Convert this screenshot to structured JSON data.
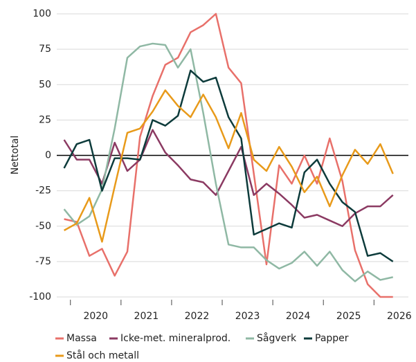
{
  "chart_data": {
    "type": "line",
    "y_label": "Nettotal",
    "x": [
      2019.875,
      2020.125,
      2020.375,
      2020.625,
      2020.875,
      2021.125,
      2021.375,
      2021.625,
      2021.875,
      2022.125,
      2022.375,
      2022.625,
      2022.875,
      2023.125,
      2023.375,
      2023.625,
      2023.875,
      2024.125,
      2024.375,
      2024.625,
      2024.875,
      2025.125,
      2025.375,
      2025.625,
      2025.875,
      2026.125,
      2026.375
    ],
    "series": [
      {
        "name": "Massa",
        "color": "#e8706a",
        "values": [
          -45,
          -47,
          -71,
          -66,
          -85,
          -68,
          13,
          42,
          64,
          69,
          87,
          92,
          100,
          62,
          51,
          -13,
          -77,
          -7,
          -20,
          0,
          -20,
          12,
          -18,
          -67,
          -91,
          -100,
          -100
        ]
      },
      {
        "name": "Icke-met. mineralprod.",
        "color": "#8b3a62",
        "values": [
          11,
          -3,
          -3,
          -20,
          9,
          -11,
          -3,
          18,
          2,
          -7,
          -17,
          -19,
          -28,
          -11,
          6,
          -28,
          -20,
          -27,
          -35,
          -44,
          -42,
          -46,
          -50,
          -41,
          -36,
          -36,
          -28
        ]
      },
      {
        "name": "Sågverk",
        "color": "#8fb8a4",
        "values": [
          -38,
          -49,
          -43,
          -24,
          19,
          69,
          77,
          79,
          78,
          62,
          75,
          30,
          -20,
          -63,
          -65,
          -65,
          -74,
          -80,
          -76,
          -68,
          -78,
          -68,
          -81,
          -89,
          -82,
          -88,
          -86
        ]
      },
      {
        "name": "Papper",
        "color": "#0d3b3b",
        "values": [
          -9,
          8,
          11,
          -25,
          -2,
          -2,
          -3,
          25,
          21,
          28,
          60,
          52,
          55,
          27,
          12,
          -56,
          -52,
          -48,
          -51,
          -12,
          -3,
          -20,
          -33,
          -40,
          -71,
          -69,
          -75
        ]
      },
      {
        "name": "Stål och metall",
        "color": "#e89a1a",
        "values": [
          -53,
          -48,
          -30,
          -61,
          -22,
          16,
          19,
          31,
          46,
          35,
          27,
          43,
          27,
          5,
          30,
          -3,
          -11,
          6,
          -8,
          -26,
          -15,
          -36,
          -14,
          4,
          -6,
          8,
          -13
        ]
      }
    ],
    "xlim": [
      2019.73,
      2026.68
    ],
    "xticks": [
      2020,
      2021,
      2022,
      2023,
      2024,
      2025,
      2026
    ],
    "ylim": [
      -100,
      100
    ],
    "yticks": [
      -100,
      -75,
      -50,
      -25,
      0,
      25,
      50,
      75,
      100
    ],
    "grid": true,
    "legend": "bottom"
  }
}
